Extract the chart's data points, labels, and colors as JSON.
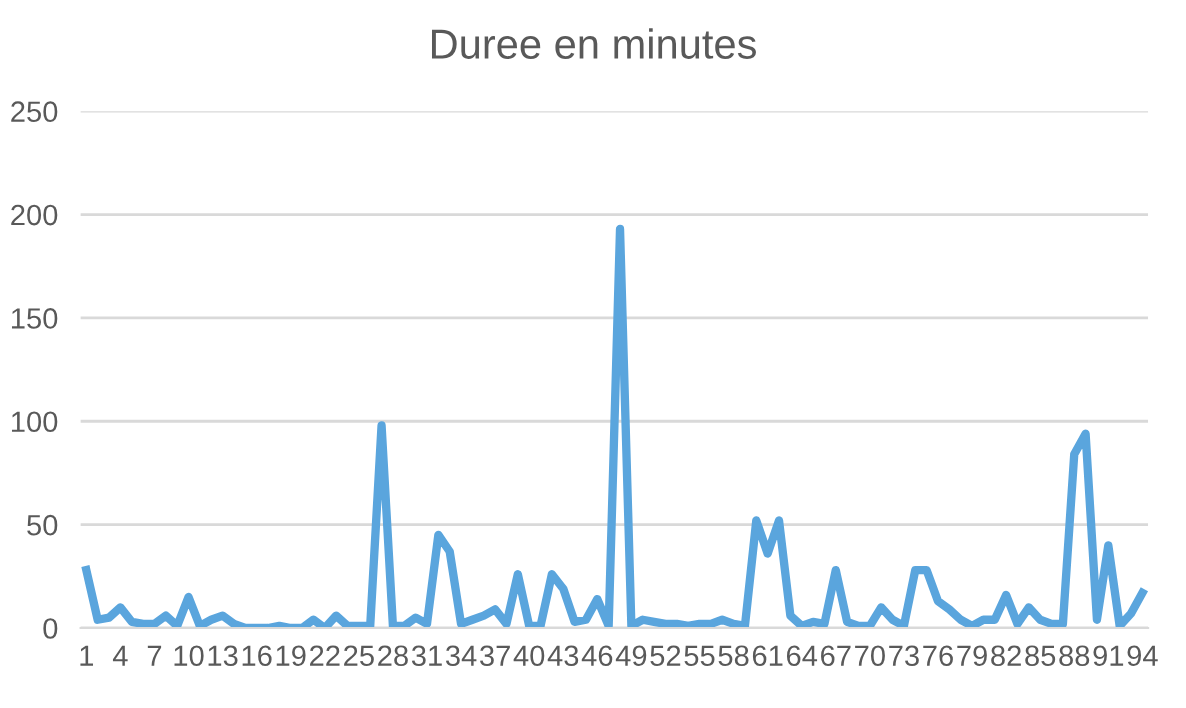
{
  "chart_data": {
    "type": "line",
    "title": "Duree en minutes",
    "categories": [
      "1",
      null,
      null,
      "4",
      null,
      null,
      "7",
      null,
      null,
      "10",
      null,
      null,
      "13",
      null,
      null,
      "16",
      null,
      null,
      "19",
      null,
      null,
      "22",
      null,
      null,
      "25",
      null,
      null,
      "28",
      null,
      null,
      "31",
      null,
      null,
      "34",
      null,
      null,
      "37",
      null,
      null,
      "40",
      null,
      null,
      "43",
      null,
      null,
      "46",
      null,
      null,
      "49",
      null,
      null,
      "52",
      null,
      null,
      "55",
      null,
      null,
      "58",
      null,
      null,
      "61",
      null,
      null,
      "64",
      null,
      null,
      "67",
      null,
      null,
      "70",
      null,
      null,
      "73",
      null,
      null,
      "76",
      null,
      null,
      "79",
      null,
      null,
      "82",
      null,
      null,
      "85",
      null,
      null,
      "88",
      null,
      null,
      "91",
      null,
      null,
      "94"
    ],
    "series": [
      {
        "color": "#5aa5dd",
        "values": [
          28,
          4,
          5,
          10,
          3,
          2,
          2,
          6,
          1,
          15,
          1,
          4,
          6,
          2,
          0,
          0,
          0,
          1,
          0,
          0,
          4,
          0,
          6,
          1,
          1,
          1,
          98,
          1,
          1,
          5,
          2,
          45,
          37,
          2,
          4,
          6,
          9,
          2,
          26,
          1,
          1,
          26,
          19,
          3,
          4,
          14,
          1,
          193,
          1,
          4,
          3,
          2,
          2,
          1,
          2,
          2,
          4,
          2,
          1,
          52,
          36,
          52,
          6,
          1,
          3,
          2,
          28,
          3,
          1,
          1,
          10,
          4,
          1,
          28,
          28,
          13,
          9,
          4,
          1,
          4,
          4,
          16,
          2,
          10,
          4,
          2,
          2,
          84,
          94,
          4,
          40,
          1,
          7,
          17
        ]
      }
    ],
    "ylim": [
      0,
      250
    ],
    "yticks": [
      0,
      50,
      100,
      150,
      200,
      250
    ],
    "grid": "y",
    "legend": false,
    "marker": "none",
    "line_style": "solid"
  }
}
